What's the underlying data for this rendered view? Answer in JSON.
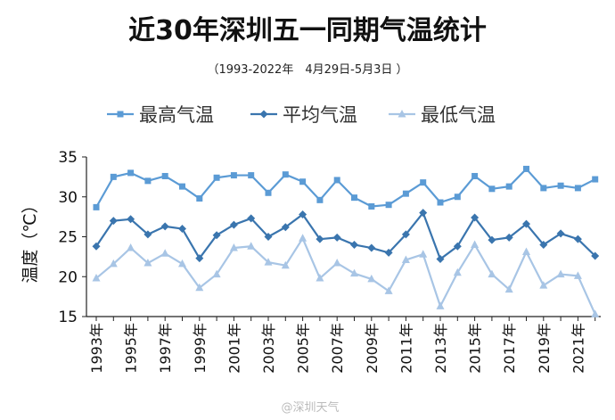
{
  "chart_data": {
    "type": "line",
    "title": "近30年深圳五一同期气温统计",
    "subtitle": "（1993-2022年　4月29日-5月3日 ）",
    "xlabel": "",
    "ylabel": "温度（℃）",
    "ylim": [
      15,
      35
    ],
    "yticks": [
      15,
      20,
      25,
      30,
      35
    ],
    "legend_position": "top",
    "grid": false,
    "x": [
      1993,
      1994,
      1995,
      1996,
      1997,
      1998,
      1999,
      2000,
      2001,
      2002,
      2003,
      2004,
      2005,
      2006,
      2007,
      2008,
      2009,
      2010,
      2011,
      2012,
      2013,
      2014,
      2015,
      2016,
      2017,
      2018,
      2019,
      2020,
      2021,
      2022
    ],
    "xtick_labels": [
      "1993年",
      "1995年",
      "1997年",
      "1999年",
      "2001年",
      "2003年",
      "2005年",
      "2007年",
      "2009年",
      "2011年",
      "2013年",
      "2015年",
      "2017年",
      "2019年",
      "2021年"
    ],
    "series": [
      {
        "name": "最高气温",
        "color": "#5B9BD5",
        "marker": "square",
        "values": [
          28.7,
          32.5,
          33.0,
          32.0,
          32.6,
          31.3,
          29.8,
          32.4,
          32.7,
          32.7,
          30.5,
          32.8,
          31.9,
          29.6,
          32.1,
          29.9,
          28.8,
          29.0,
          30.4,
          31.8,
          29.3,
          30.0,
          32.6,
          31.0,
          31.3,
          33.5,
          31.1,
          31.4,
          31.1,
          32.2
        ]
      },
      {
        "name": "平均气温",
        "color": "#3A75AE",
        "marker": "diamond",
        "values": [
          23.8,
          27.0,
          27.2,
          25.3,
          26.3,
          26.0,
          22.3,
          25.2,
          26.5,
          27.3,
          25.0,
          26.2,
          27.8,
          24.7,
          24.9,
          24.0,
          23.6,
          23.0,
          25.3,
          28.0,
          22.2,
          23.8,
          27.4,
          24.6,
          24.9,
          26.6,
          24.0,
          25.4,
          24.7,
          22.6
        ]
      },
      {
        "name": "最低气温",
        "color": "#A8C5E5",
        "marker": "triangle",
        "values": [
          19.8,
          21.6,
          23.6,
          21.7,
          22.9,
          21.6,
          18.6,
          20.3,
          23.6,
          23.8,
          21.8,
          21.4,
          24.8,
          19.8,
          21.7,
          20.4,
          19.7,
          18.2,
          22.1,
          22.8,
          16.3,
          20.5,
          24.0,
          20.3,
          18.4,
          23.1,
          18.9,
          20.3,
          20.1,
          15.3
        ]
      }
    ],
    "watermark": "@深圳天气"
  }
}
